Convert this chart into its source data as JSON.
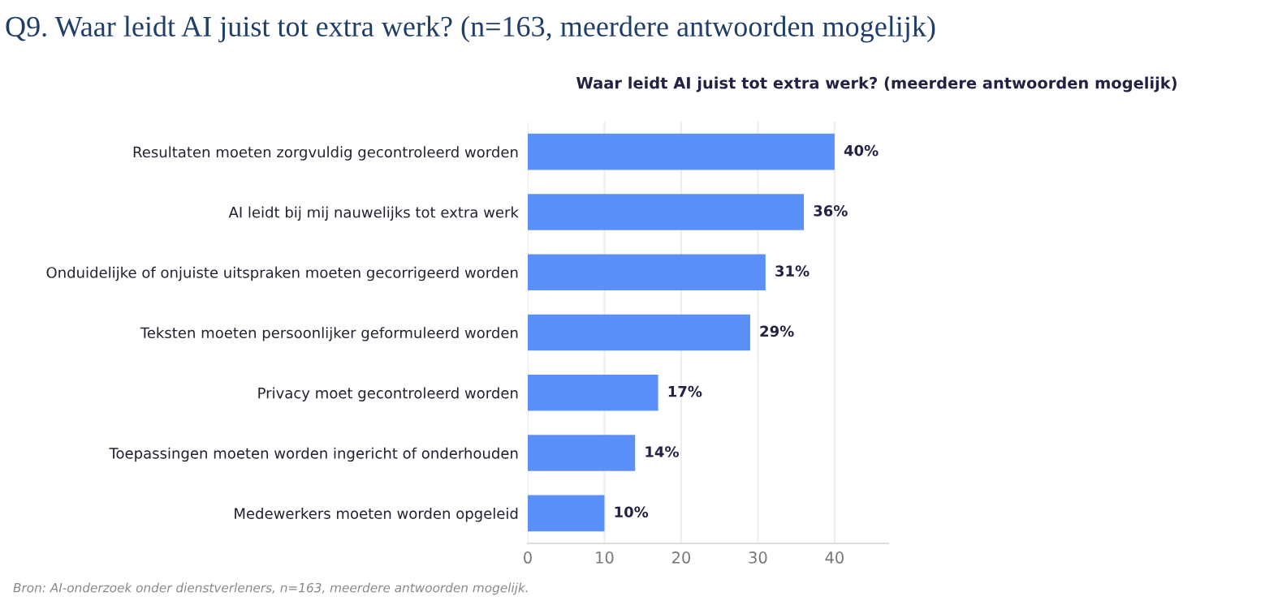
{
  "chart_data": {
    "type": "bar",
    "orientation": "horizontal",
    "title": "Q9. Waar leidt AI juist tot extra werk? (n=163, meerdere antwoorden mogelijk)",
    "subtitle": "Waar leidt AI juist tot extra werk? (meerdere antwoorden mogelijk)",
    "categories": [
      "Resultaten moeten zorgvuldig gecontroleerd worden",
      "AI leidt bij mij nauwelijks tot extra werk",
      "Onduidelijke of onjuiste uitspraken moeten gecorrigeerd worden",
      "Teksten moeten persoonlijker geformuleerd worden",
      "Privacy moet gecontroleerd worden",
      "Toepassingen moeten worden ingericht of onderhouden",
      "Medewerkers moeten worden opgeleid"
    ],
    "values": [
      40,
      36,
      31,
      29,
      17,
      14,
      10
    ],
    "value_labels": [
      "40%",
      "36%",
      "31%",
      "29%",
      "17%",
      "14%",
      "10%"
    ],
    "color": "#5b8ff9",
    "xlim": [
      0,
      47
    ],
    "xticks": [
      0,
      10,
      20,
      30,
      40
    ],
    "grid": "x",
    "annotations": [
      "Bron: AI-onderzoek onder dienstverleners, n=163, meerdere antwoorden mogelijk."
    ]
  }
}
